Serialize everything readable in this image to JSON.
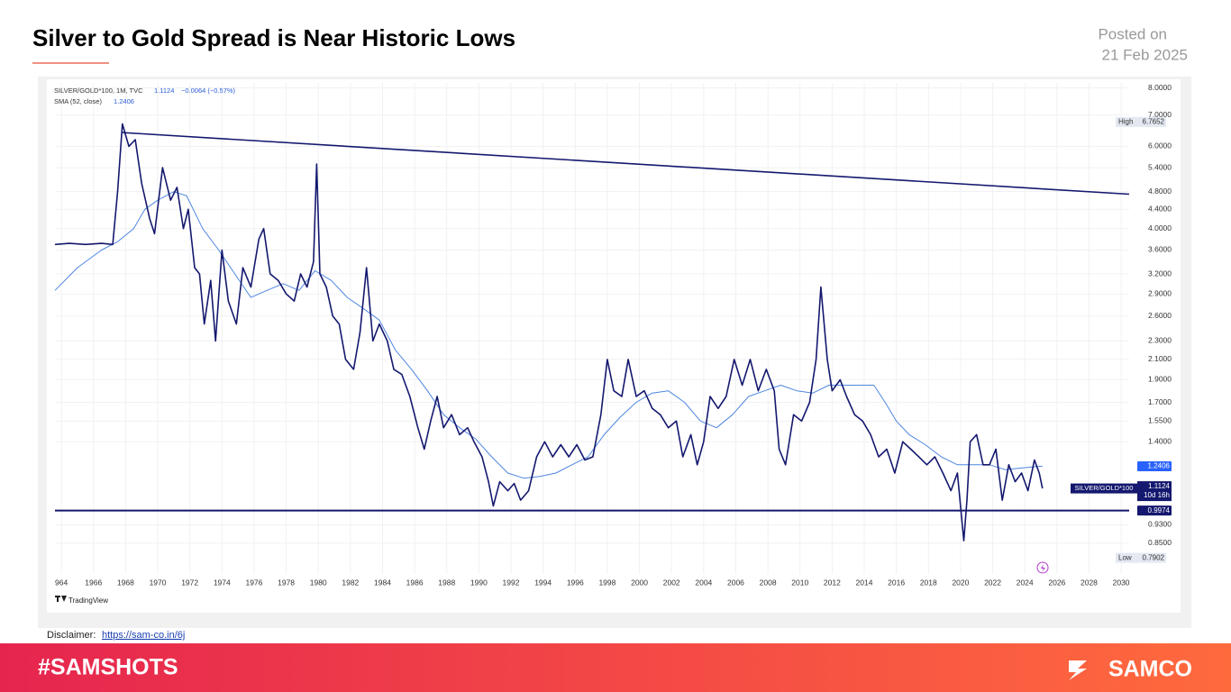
{
  "header": {
    "posted_label": "Posted on",
    "date": "21 Feb 2025"
  },
  "chart_data": {
    "type": "line",
    "title": "Silver to Gold Spread is Near Historic Lows",
    "info_line": "SILVER/GOLD*100, 1M, TVC",
    "last_value": 1.1124,
    "change": "−0.0064 (−0.57%)",
    "sma_label": "SMA (52, close)",
    "sma_value": 1.2406,
    "countdown": "10d 16h",
    "high": {
      "label": "High",
      "value": 6.7652
    },
    "low": {
      "label": "Low",
      "value": 0.7902
    },
    "support_level": 0.9974,
    "trendline": {
      "x": [
        1967.8,
        2030.5
      ],
      "values": [
        6.42,
        4.74
      ]
    },
    "log_y": true,
    "grid": true,
    "xlim": [
      1963.6,
      2030.5
    ],
    "ylim": [
      0.73,
      8.2
    ],
    "xticks": [
      {
        "value": 1964,
        "label": "964"
      },
      1966,
      1968,
      1970,
      1972,
      1974,
      1976,
      1978,
      1980,
      1982,
      1984,
      1986,
      1988,
      1990,
      1992,
      1994,
      1996,
      1998,
      2000,
      2002,
      2004,
      2006,
      2008,
      2010,
      2012,
      2014,
      2016,
      2018,
      2020,
      2022,
      2024,
      2026,
      2028,
      2030
    ],
    "yticks": [
      {
        "value": 8.0,
        "label": "8.0000"
      },
      {
        "value": 7.0,
        "label": "7.0000"
      },
      {
        "value": 6.0,
        "label": "6.0000"
      },
      {
        "value": 5.4,
        "label": "5.4000"
      },
      {
        "value": 4.8,
        "label": "4.8000"
      },
      {
        "value": 4.4,
        "label": "4.4000"
      },
      {
        "value": 4.0,
        "label": "4.0000"
      },
      {
        "value": 3.6,
        "label": "3.6000"
      },
      {
        "value": 3.2,
        "label": "3.2000"
      },
      {
        "value": 2.9,
        "label": "2.9000"
      },
      {
        "value": 2.6,
        "label": "2.6000"
      },
      {
        "value": 2.3,
        "label": "2.3000"
      },
      {
        "value": 2.1,
        "label": "2.1000"
      },
      {
        "value": 1.9,
        "label": "1.9000"
      },
      {
        "value": 1.7,
        "label": "1.7000"
      },
      {
        "value": 1.55,
        "label": "1.5500"
      },
      {
        "value": 1.4,
        "label": "1.4000"
      },
      {
        "value": 0.93,
        "label": "0.9300"
      },
      {
        "value": 0.85,
        "label": "0.8500"
      }
    ],
    "series": [
      {
        "name": "SILVER/GOLD*100",
        "color": "#14186e",
        "x": [
          1963.6,
          1964.5,
          1965.5,
          1966.5,
          1967.2,
          1967.5,
          1967.8,
          1968.2,
          1968.6,
          1969,
          1969.5,
          1969.8,
          1970.3,
          1970.8,
          1971.2,
          1971.6,
          1971.9,
          1972.3,
          1972.6,
          1972.9,
          1973.3,
          1973.6,
          1974,
          1974.4,
          1974.9,
          1975.3,
          1975.8,
          1976.3,
          1976.6,
          1977,
          1977.5,
          1978,
          1978.5,
          1978.9,
          1979.3,
          1979.7,
          1979.9,
          1980.1,
          1980.5,
          1980.9,
          1981.3,
          1981.7,
          1982.2,
          1982.6,
          1983,
          1983.4,
          1983.8,
          1984.3,
          1984.7,
          1985.2,
          1985.7,
          1986.2,
          1986.6,
          1987,
          1987.4,
          1987.8,
          1988.3,
          1988.8,
          1989.3,
          1989.7,
          1990.2,
          1990.6,
          1990.9,
          1991.3,
          1991.8,
          1992.2,
          1992.6,
          1993.1,
          1993.6,
          1994.1,
          1994.6,
          1995.1,
          1995.6,
          1996.1,
          1996.6,
          1997.1,
          1997.6,
          1998,
          1998.4,
          1998.9,
          1999.3,
          1999.8,
          2000.3,
          2000.8,
          2001.3,
          2001.8,
          2002.3,
          2002.7,
          2003.2,
          2003.6,
          2004,
          2004.4,
          2004.9,
          2005.4,
          2005.9,
          2006.4,
          2006.9,
          2007.4,
          2007.9,
          2008.4,
          2008.7,
          2009.1,
          2009.6,
          2010.1,
          2010.6,
          2011,
          2011.3,
          2011.7,
          2012,
          2012.5,
          2012.9,
          2013.4,
          2013.9,
          2014.4,
          2014.9,
          2015.4,
          2015.9,
          2016.4,
          2016.9,
          2017.4,
          2017.9,
          2018.4,
          2018.9,
          2019.4,
          2019.8,
          2020.2,
          2020.4,
          2020.6,
          2021,
          2021.4,
          2021.8,
          2022.2,
          2022.6,
          2023,
          2023.4,
          2023.8,
          2024.2,
          2024.6,
          2024.9,
          2025.1
        ],
        "values": [
          3.7,
          3.72,
          3.7,
          3.72,
          3.7,
          4.8,
          6.7,
          6.0,
          6.2,
          5.0,
          4.2,
          3.9,
          5.4,
          4.6,
          4.9,
          4.0,
          4.4,
          3.3,
          3.2,
          2.5,
          3.1,
          2.3,
          3.6,
          2.8,
          2.5,
          3.3,
          3.0,
          3.8,
          4.0,
          3.2,
          3.1,
          2.9,
          2.8,
          3.2,
          3.0,
          3.4,
          5.5,
          3.2,
          3.0,
          2.6,
          2.5,
          2.1,
          2.0,
          2.4,
          3.3,
          2.3,
          2.5,
          2.3,
          2.0,
          1.95,
          1.75,
          1.5,
          1.35,
          1.55,
          1.75,
          1.5,
          1.6,
          1.45,
          1.5,
          1.4,
          1.3,
          1.15,
          1.02,
          1.15,
          1.1,
          1.14,
          1.05,
          1.1,
          1.3,
          1.4,
          1.3,
          1.38,
          1.3,
          1.38,
          1.28,
          1.3,
          1.6,
          2.1,
          1.8,
          1.75,
          2.1,
          1.75,
          1.8,
          1.65,
          1.6,
          1.5,
          1.55,
          1.3,
          1.45,
          1.25,
          1.4,
          1.75,
          1.65,
          1.75,
          2.1,
          1.85,
          2.1,
          1.8,
          2.0,
          1.8,
          1.35,
          1.25,
          1.6,
          1.55,
          1.7,
          2.1,
          3.0,
          2.1,
          1.8,
          1.9,
          1.75,
          1.6,
          1.55,
          1.45,
          1.3,
          1.35,
          1.2,
          1.4,
          1.35,
          1.3,
          1.25,
          1.3,
          1.2,
          1.1,
          1.2,
          0.86,
          1.05,
          1.4,
          1.45,
          1.25,
          1.25,
          1.35,
          1.05,
          1.25,
          1.15,
          1.2,
          1.1,
          1.28,
          1.2,
          1.1124
        ]
      },
      {
        "name": "SMA (52, close)",
        "color": "#4f86e0",
        "x": [
          1963.6,
          1965,
          1966.5,
          1967.5,
          1968.5,
          1969.2,
          1970,
          1971,
          1971.8,
          1972.8,
          1973.8,
          1974.8,
          1975.8,
          1976.8,
          1977.8,
          1978.8,
          1979.8,
          1980.8,
          1981.8,
          1982.8,
          1983.8,
          1984.8,
          1985.8,
          1986.8,
          1987.8,
          1988.8,
          1989.8,
          1990.8,
          1991.8,
          1992.8,
          1993.8,
          1994.8,
          1995.8,
          1996.8,
          1997.8,
          1998.8,
          1999.8,
          2000.8,
          2001.8,
          2002.8,
          2003.8,
          2004.8,
          2005.8,
          2006.8,
          2007.8,
          2008.8,
          2009.8,
          2010.8,
          2011.8,
          2012.8,
          2013.8,
          2014.6,
          2015.3,
          2016,
          2016.8,
          2017.8,
          2018.8,
          2019.8,
          2020.8,
          2021.8,
          2022.8,
          2023.8,
          2024.8,
          2025.1
        ],
        "values": [
          2.95,
          3.3,
          3.6,
          3.75,
          4.0,
          4.4,
          4.6,
          4.8,
          4.7,
          4.0,
          3.6,
          3.2,
          2.85,
          2.95,
          3.05,
          2.95,
          3.25,
          3.1,
          2.85,
          2.7,
          2.55,
          2.2,
          2.0,
          1.8,
          1.6,
          1.5,
          1.42,
          1.3,
          1.2,
          1.17,
          1.18,
          1.2,
          1.25,
          1.3,
          1.45,
          1.58,
          1.7,
          1.78,
          1.8,
          1.7,
          1.55,
          1.5,
          1.6,
          1.75,
          1.8,
          1.85,
          1.8,
          1.78,
          1.85,
          1.85,
          1.85,
          1.85,
          1.7,
          1.55,
          1.45,
          1.38,
          1.3,
          1.25,
          1.25,
          1.25,
          1.22,
          1.23,
          1.24,
          1.2406
        ]
      }
    ],
    "watermark": "TradingView"
  },
  "footer": {
    "disclaimer_label": "Disclaimer:",
    "disclaimer_link": "https://sam-co.in/6j",
    "hashtag": "#SAMSHOTS",
    "brand": "SAMCO"
  }
}
